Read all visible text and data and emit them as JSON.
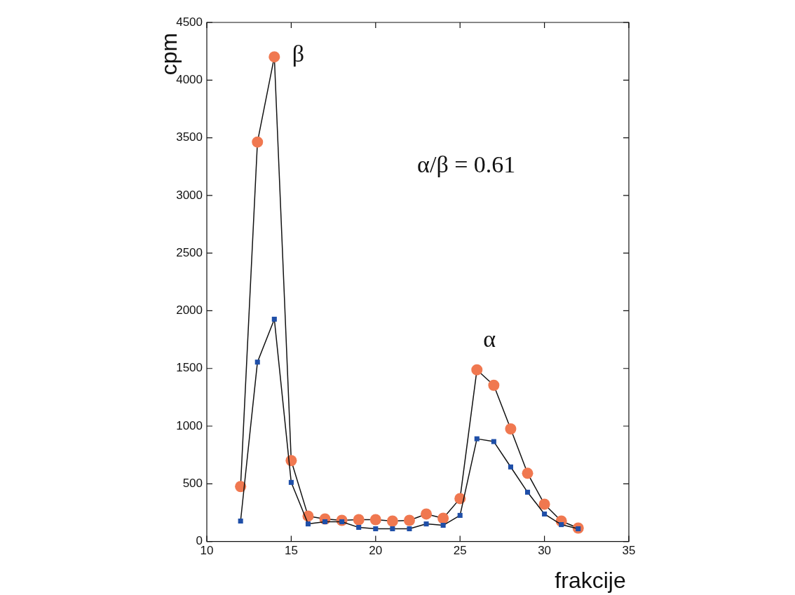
{
  "chart_data": {
    "type": "line",
    "xlabel": "frakcije",
    "ylabel": "cpm",
    "x": [
      12,
      13,
      14,
      15,
      16,
      17,
      18,
      19,
      20,
      21,
      22,
      23,
      24,
      25,
      26,
      27,
      28,
      29,
      30,
      31,
      32
    ],
    "series": [
      {
        "color": "#f07850",
        "marker": "circle",
        "values": [
          476,
          3463,
          4201,
          701,
          220,
          195,
          183,
          189,
          189,
          177,
          183,
          238,
          201,
          372,
          1488,
          1354,
          976,
          591,
          323,
          177,
          116
        ]
      },
      {
        "color": "#1f4fa8",
        "marker": "square",
        "values": [
          177,
          1555,
          1927,
          512,
          152,
          171,
          171,
          122,
          110,
          110,
          110,
          152,
          140,
          226,
          890,
          866,
          646,
          427,
          238,
          146,
          110
        ]
      }
    ],
    "xlim": [
      10,
      35
    ],
    "xticks": [
      10,
      15,
      20,
      25,
      30,
      35
    ],
    "ylim": [
      0,
      4500
    ],
    "yticks": [
      0,
      500,
      1000,
      1500,
      2000,
      2500,
      3000,
      3500,
      4000,
      4500
    ],
    "grid": false,
    "legend": false,
    "line_style": "solid",
    "annotations": [
      {
        "text": "β",
        "x": 14,
        "y": 4201
      },
      {
        "text": "α",
        "x": 26,
        "y": 1488
      },
      "α/β = 0.61"
    ]
  }
}
